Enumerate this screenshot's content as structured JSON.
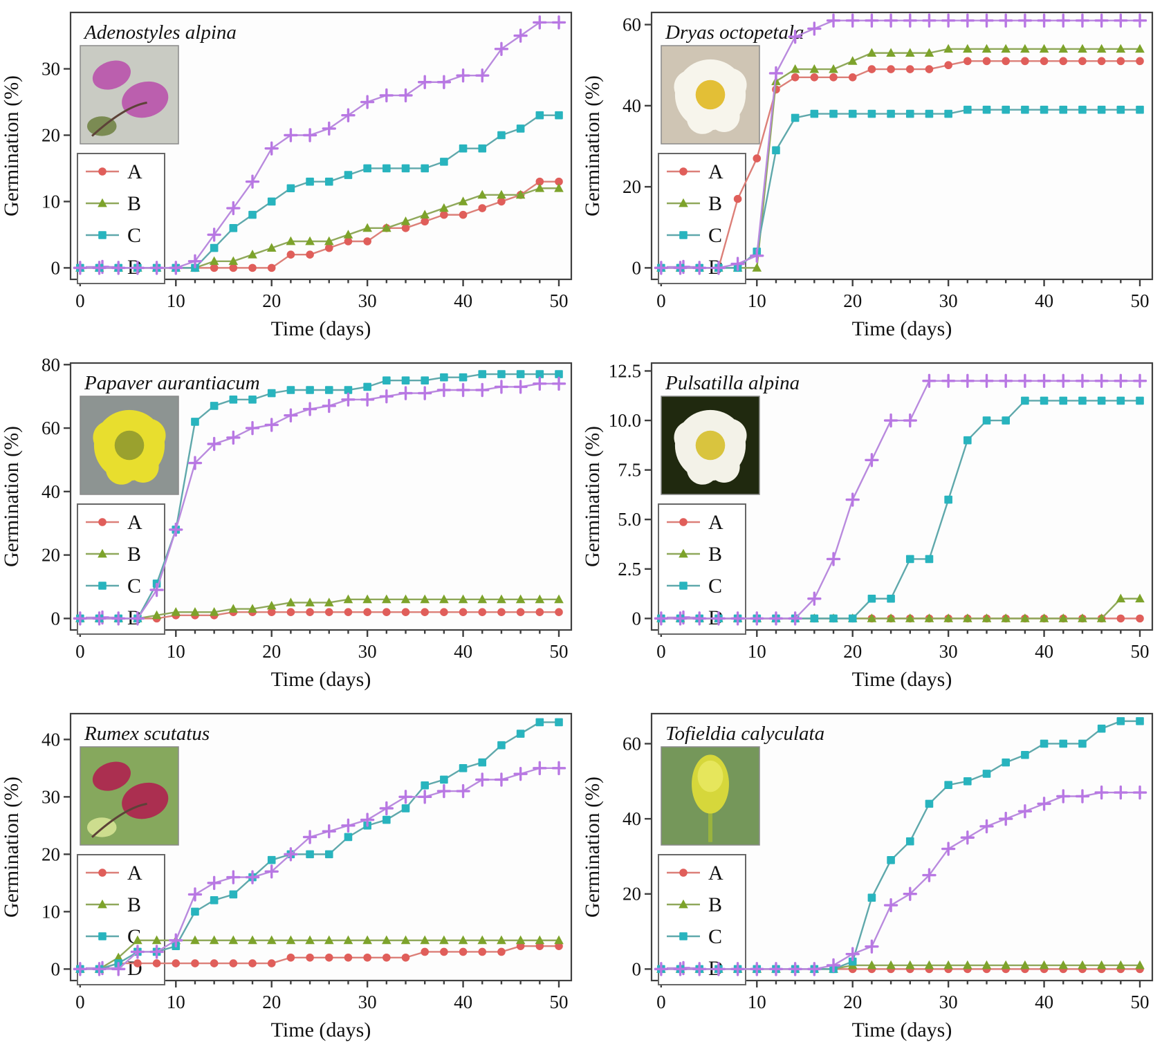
{
  "figure": {
    "x_label": "Time (days)",
    "y_label": "Germination (%)",
    "legend_labels": [
      "A",
      "B",
      "C",
      "D"
    ],
    "colors": {
      "A": "#e05e5a",
      "B": "#7da32b",
      "C": "#28b4be",
      "D": "#b877e3"
    },
    "line_colors": {
      "A": "#dc7f78",
      "B": "#8fa85a",
      "C": "#5fa8ab",
      "D": "#b98ade"
    },
    "markers": {
      "A": "circle",
      "B": "triangle",
      "C": "square",
      "D": "plus"
    },
    "axis_color": "#3f3f3f",
    "x_ticks_major": [
      0,
      10,
      20,
      30,
      40,
      50
    ],
    "x_minor_step": 2
  },
  "chart_data": [
    {
      "type": "line",
      "title": "Adenostyles alpina",
      "xlabel": "Time (days)",
      "ylabel": "Germination (%)",
      "x": [
        0,
        2,
        4,
        6,
        8,
        10,
        12,
        14,
        16,
        18,
        20,
        22,
        24,
        26,
        28,
        30,
        32,
        34,
        36,
        38,
        40,
        42,
        44,
        46,
        48,
        50
      ],
      "ylim": [
        0,
        38.5
      ],
      "yticks": [
        0,
        10,
        20,
        30
      ],
      "ytick_labels": [
        "0",
        "10",
        "20",
        "30"
      ],
      "series": [
        {
          "name": "A",
          "values": [
            0,
            0,
            0,
            0,
            0,
            0,
            0,
            0,
            0,
            0,
            0,
            2,
            2,
            3,
            4,
            4,
            6,
            6,
            7,
            8,
            8,
            9,
            10,
            11,
            13,
            13
          ]
        },
        {
          "name": "B",
          "values": [
            0,
            0,
            0,
            0,
            0,
            0,
            0,
            1,
            1,
            2,
            3,
            4,
            4,
            4,
            5,
            6,
            6,
            7,
            8,
            9,
            10,
            11,
            11,
            11,
            12,
            12
          ]
        },
        {
          "name": "C",
          "values": [
            0,
            0,
            0,
            0,
            0,
            0,
            0,
            3,
            6,
            8,
            10,
            12,
            13,
            13,
            14,
            15,
            15,
            15,
            15,
            16,
            18,
            18,
            20,
            21,
            23,
            23
          ]
        },
        {
          "name": "D",
          "values": [
            0,
            0,
            0,
            0,
            0,
            0,
            1,
            5,
            9,
            13,
            18,
            20,
            20,
            21,
            23,
            25,
            26,
            26,
            28,
            28,
            29,
            29,
            33,
            35,
            37,
            37
          ]
        }
      ],
      "photo": {
        "kind": "blobs",
        "bg": "#c9cbc3",
        "blob": "#bb5fae",
        "accent": "#7b8b53"
      }
    },
    {
      "type": "line",
      "title": "Dryas octopetala",
      "xlabel": "Time (days)",
      "ylabel": "Germination (%)",
      "x": [
        0,
        2,
        4,
        6,
        8,
        10,
        12,
        14,
        16,
        18,
        20,
        22,
        24,
        26,
        28,
        30,
        32,
        34,
        36,
        38,
        40,
        42,
        44,
        46,
        48,
        50
      ],
      "ylim": [
        0,
        63
      ],
      "yticks": [
        0,
        20,
        40,
        60
      ],
      "ytick_labels": [
        "0",
        "20",
        "40",
        "60"
      ],
      "series": [
        {
          "name": "A",
          "values": [
            0,
            0,
            0,
            0,
            17,
            27,
            44,
            47,
            47,
            47,
            47,
            49,
            49,
            49,
            49,
            50,
            51,
            51,
            51,
            51,
            51,
            51,
            51,
            51,
            51,
            51
          ]
        },
        {
          "name": "B",
          "values": [
            0,
            0,
            0,
            0,
            0,
            0,
            46,
            49,
            49,
            49,
            51,
            53,
            53,
            53,
            53,
            54,
            54,
            54,
            54,
            54,
            54,
            54,
            54,
            54,
            54,
            54
          ]
        },
        {
          "name": "C",
          "values": [
            0,
            0,
            0,
            0,
            0,
            4,
            29,
            37,
            38,
            38,
            38,
            38,
            38,
            38,
            38,
            38,
            39,
            39,
            39,
            39,
            39,
            39,
            39,
            39,
            39,
            39
          ]
        },
        {
          "name": "D",
          "values": [
            0,
            0,
            0,
            0,
            1,
            3,
            48,
            57,
            59,
            61,
            61,
            61,
            61,
            61,
            61,
            61,
            61,
            61,
            61,
            61,
            61,
            61,
            61,
            61,
            61,
            61
          ]
        }
      ],
      "photo": {
        "kind": "flower",
        "bg": "#cfc5b4",
        "petal": "#f7f5ec",
        "center": "#e3bf36"
      }
    },
    {
      "type": "line",
      "title": "Papaver aurantiacum",
      "xlabel": "Time (days)",
      "ylabel": "Germination (%)",
      "x": [
        0,
        2,
        4,
        6,
        8,
        10,
        12,
        14,
        16,
        18,
        20,
        22,
        24,
        26,
        28,
        30,
        32,
        34,
        36,
        38,
        40,
        42,
        44,
        46,
        48,
        50
      ],
      "ylim": [
        0,
        80.5
      ],
      "yticks": [
        0,
        20,
        40,
        60,
        80
      ],
      "ytick_labels": [
        "0",
        "20",
        "40",
        "60",
        "80"
      ],
      "series": [
        {
          "name": "A",
          "values": [
            0,
            0,
            0,
            0,
            0,
            1,
            1,
            1,
            2,
            2,
            2,
            2,
            2,
            2,
            2,
            2,
            2,
            2,
            2,
            2,
            2,
            2,
            2,
            2,
            2,
            2
          ]
        },
        {
          "name": "B",
          "values": [
            0,
            0,
            0,
            0,
            1,
            2,
            2,
            2,
            3,
            3,
            4,
            5,
            5,
            5,
            6,
            6,
            6,
            6,
            6,
            6,
            6,
            6,
            6,
            6,
            6,
            6
          ]
        },
        {
          "name": "C",
          "values": [
            0,
            0,
            0,
            0,
            11,
            28,
            62,
            67,
            69,
            69,
            71,
            72,
            72,
            72,
            72,
            73,
            75,
            75,
            75,
            76,
            76,
            77,
            77,
            77,
            77,
            77
          ]
        },
        {
          "name": "D",
          "values": [
            0,
            0,
            0,
            0,
            9,
            28,
            49,
            55,
            57,
            60,
            61,
            64,
            66,
            67,
            69,
            69,
            70,
            71,
            71,
            72,
            72,
            72,
            73,
            73,
            74,
            74
          ]
        }
      ],
      "photo": {
        "kind": "flower",
        "bg": "#8d9492",
        "petal": "#e8de2e",
        "center": "#9aa12e"
      }
    },
    {
      "type": "line",
      "title": "Pulsatilla alpina",
      "xlabel": "Time (days)",
      "ylabel": "Germination (%)",
      "x": [
        0,
        2,
        4,
        6,
        8,
        10,
        12,
        14,
        16,
        18,
        20,
        22,
        24,
        26,
        28,
        30,
        32,
        34,
        36,
        38,
        40,
        42,
        44,
        46,
        48,
        50
      ],
      "ylim": [
        0,
        12.9
      ],
      "yticks": [
        0,
        2.5,
        5.0,
        7.5,
        10.0,
        12.5
      ],
      "ytick_labels": [
        "0",
        "2.5",
        "5.0",
        "7.5",
        "10.0",
        "12.5"
      ],
      "series": [
        {
          "name": "A",
          "values": [
            0,
            0,
            0,
            0,
            0,
            0,
            0,
            0,
            0,
            0,
            0,
            0,
            0,
            0,
            0,
            0,
            0,
            0,
            0,
            0,
            0,
            0,
            0,
            0,
            0,
            0
          ]
        },
        {
          "name": "B",
          "values": [
            0,
            0,
            0,
            0,
            0,
            0,
            0,
            0,
            0,
            0,
            0,
            0,
            0,
            0,
            0,
            0,
            0,
            0,
            0,
            0,
            0,
            0,
            0,
            0,
            1,
            1
          ]
        },
        {
          "name": "C",
          "values": [
            0,
            0,
            0,
            0,
            0,
            0,
            0,
            0,
            0,
            0,
            0,
            1,
            1,
            3,
            3,
            6,
            9,
            10,
            10,
            11,
            11,
            11,
            11,
            11,
            11,
            11
          ]
        },
        {
          "name": "D",
          "values": [
            0,
            0,
            0,
            0,
            0,
            0,
            0,
            0,
            1,
            3,
            6,
            8,
            10,
            10,
            12,
            12,
            12,
            12,
            12,
            12,
            12,
            12,
            12,
            12,
            12,
            12
          ]
        }
      ],
      "photo": {
        "kind": "flower",
        "bg": "#20290f",
        "petal": "#f3f2e8",
        "center": "#d9c43e"
      }
    },
    {
      "type": "line",
      "title": "Rumex scutatus",
      "xlabel": "Time (days)",
      "ylabel": "Germination (%)",
      "x": [
        0,
        2,
        4,
        6,
        8,
        10,
        12,
        14,
        16,
        18,
        20,
        22,
        24,
        26,
        28,
        30,
        32,
        34,
        36,
        38,
        40,
        42,
        44,
        46,
        48,
        50
      ],
      "ylim": [
        0,
        44.5
      ],
      "yticks": [
        0,
        10,
        20,
        30,
        40
      ],
      "ytick_labels": [
        "0",
        "10",
        "20",
        "30",
        "40"
      ],
      "series": [
        {
          "name": "A",
          "values": [
            0,
            0,
            1,
            1,
            1,
            1,
            1,
            1,
            1,
            1,
            1,
            2,
            2,
            2,
            2,
            2,
            2,
            2,
            3,
            3,
            3,
            3,
            3,
            4,
            4,
            4
          ]
        },
        {
          "name": "B",
          "values": [
            0,
            0,
            2,
            5,
            5,
            5,
            5,
            5,
            5,
            5,
            5,
            5,
            5,
            5,
            5,
            5,
            5,
            5,
            5,
            5,
            5,
            5,
            5,
            5,
            5,
            5
          ]
        },
        {
          "name": "C",
          "values": [
            0,
            0,
            1,
            3,
            3,
            4,
            10,
            12,
            13,
            16,
            19,
            20,
            20,
            20,
            23,
            25,
            26,
            28,
            32,
            33,
            35,
            36,
            39,
            41,
            43,
            43
          ]
        },
        {
          "name": "D",
          "values": [
            0,
            0,
            0,
            3,
            3,
            5,
            13,
            15,
            16,
            16,
            17,
            20,
            23,
            24,
            25,
            26,
            28,
            30,
            30,
            31,
            31,
            33,
            33,
            34,
            35,
            35
          ]
        }
      ],
      "photo": {
        "kind": "blobs",
        "bg": "#86a85d",
        "blob": "#ab2f50",
        "accent": "#cddd8e"
      }
    },
    {
      "type": "line",
      "title": "Tofieldia calyculata",
      "xlabel": "Time (days)",
      "ylabel": "Germination (%)",
      "x": [
        0,
        2,
        4,
        6,
        8,
        10,
        12,
        14,
        16,
        18,
        20,
        22,
        24,
        26,
        28,
        30,
        32,
        34,
        36,
        38,
        40,
        42,
        44,
        46,
        48,
        50
      ],
      "ylim": [
        0,
        68
      ],
      "yticks": [
        0,
        20,
        40,
        60
      ],
      "ytick_labels": [
        "0",
        "20",
        "40",
        "60"
      ],
      "series": [
        {
          "name": "A",
          "values": [
            0,
            0,
            0,
            0,
            0,
            0,
            0,
            0,
            0,
            0,
            0,
            0,
            0,
            0,
            0,
            0,
            0,
            0,
            0,
            0,
            0,
            0,
            0,
            0,
            0,
            0
          ]
        },
        {
          "name": "B",
          "values": [
            0,
            0,
            0,
            0,
            0,
            0,
            0,
            0,
            0,
            0,
            1,
            1,
            1,
            1,
            1,
            1,
            1,
            1,
            1,
            1,
            1,
            1,
            1,
            1,
            1,
            1
          ]
        },
        {
          "name": "C",
          "values": [
            0,
            0,
            0,
            0,
            0,
            0,
            0,
            0,
            0,
            0,
            2,
            19,
            29,
            34,
            44,
            49,
            50,
            52,
            55,
            57,
            60,
            60,
            60,
            64,
            66,
            66
          ]
        },
        {
          "name": "D",
          "values": [
            0,
            0,
            0,
            0,
            0,
            0,
            0,
            0,
            0,
            1,
            4,
            6,
            17,
            20,
            25,
            32,
            35,
            38,
            40,
            42,
            44,
            46,
            46,
            47,
            47,
            47
          ]
        }
      ],
      "photo": {
        "kind": "spike",
        "bg": "#75975a",
        "spike": "#d6d73b",
        "stem": "#9ab33e"
      }
    }
  ]
}
